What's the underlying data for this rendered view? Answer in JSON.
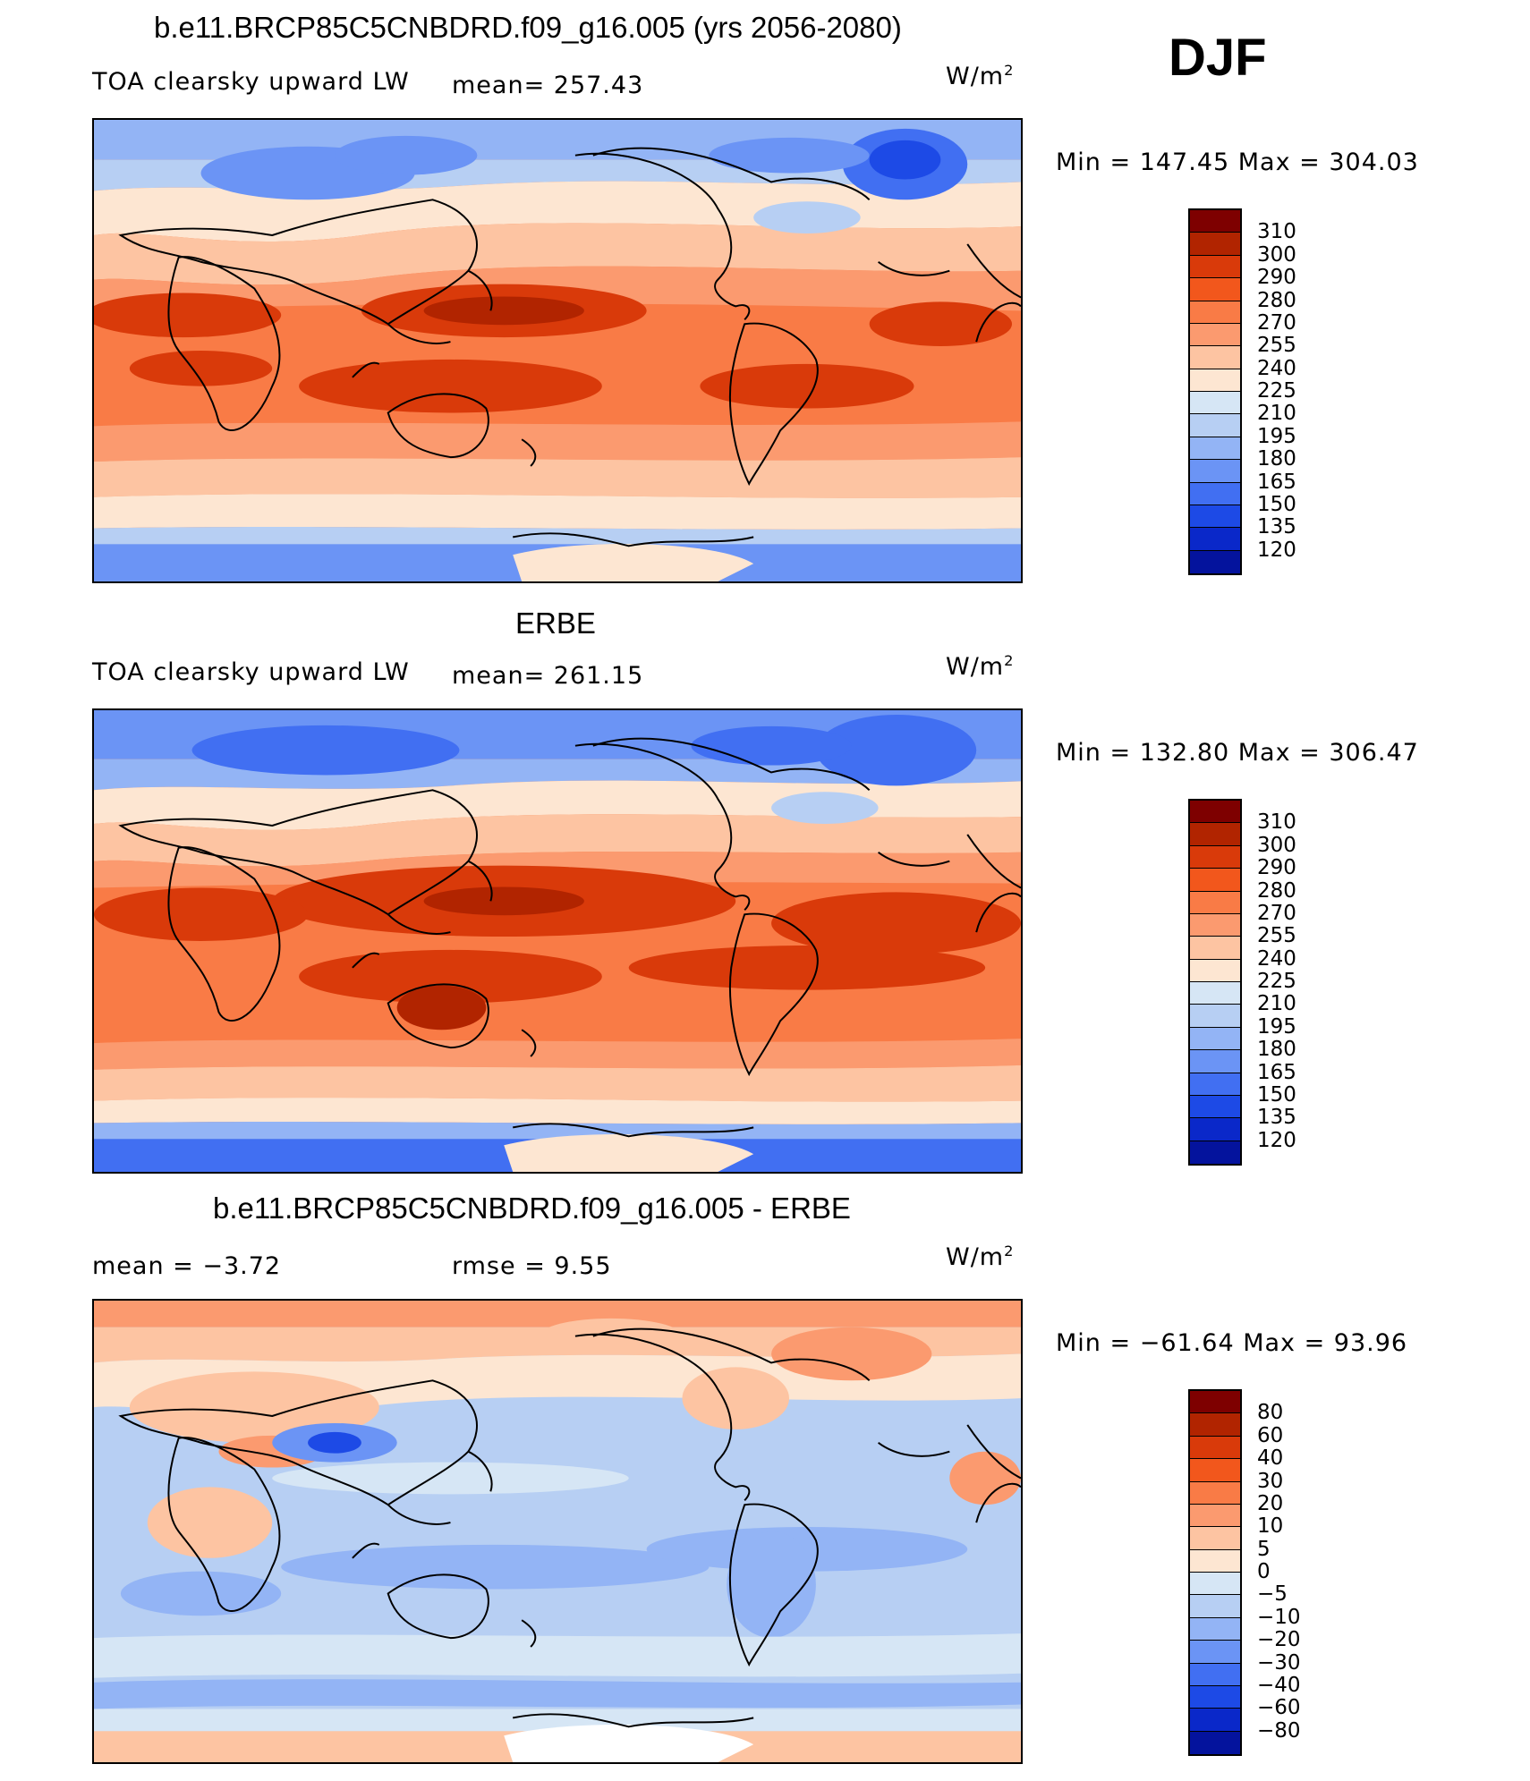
{
  "season": "DJF",
  "units_prefix": "W/m",
  "units_exp": "2",
  "palettes": {
    "abs": [
      "#7e0000",
      "#b12400",
      "#d93a0a",
      "#f2571c",
      "#f97b46",
      "#fb9a6f",
      "#fdc4a2",
      "#fde6d2",
      "#d6e6f5",
      "#b7cff3",
      "#93b4f5",
      "#6b94f5",
      "#416ff2",
      "#1d4ae6",
      "#0a28c9",
      "#04139d",
      "#000682"
    ],
    "diff": [
      "#7e0000",
      "#b12400",
      "#d93a0a",
      "#f2571c",
      "#f97b46",
      "#fb9a6f",
      "#fdc4a2",
      "#fde6d2",
      "#d6e6f5",
      "#b7cff3",
      "#93b4f5",
      "#6b94f5",
      "#416ff2",
      "#1d4ae6",
      "#0a28c9",
      "#04139d",
      "#000682"
    ]
  },
  "panels": [
    {
      "id": "model",
      "title": "b.e11.BRCP85C5CNBDRD.f09_g16.005 (yrs 2056-2080)",
      "variable": "TOA clearsky upward LW",
      "mean_text": "mean=  257.43",
      "rmse_text": "",
      "minmax_text": "Min  =  147.45  Max  =  304.03",
      "colorbar": {
        "palette": "abs",
        "labels": [
          "310",
          "300",
          "290",
          "280",
          "270",
          "255",
          "240",
          "225",
          "210",
          "195",
          "180",
          "165",
          "150",
          "135",
          "120"
        ]
      }
    },
    {
      "id": "obs",
      "title": "ERBE",
      "variable": "TOA clearsky upward LW",
      "mean_text": "mean=  261.15",
      "rmse_text": "",
      "minmax_text": "Min  =  132.80  Max  =  306.47",
      "colorbar": {
        "palette": "abs",
        "labels": [
          "310",
          "300",
          "290",
          "280",
          "270",
          "255",
          "240",
          "225",
          "210",
          "195",
          "180",
          "165",
          "150",
          "135",
          "120"
        ]
      }
    },
    {
      "id": "diff",
      "title": "b.e11.BRCP85C5CNBDRD.f09_g16.005 - ERBE",
      "variable": "",
      "mean_text": "mean  =    −3.72",
      "rmse_text": "rmse  =     9.55",
      "minmax_text": "Min  =  −61.64  Max  =    93.96",
      "colorbar": {
        "palette": "diff",
        "labels": [
          "80",
          "60",
          "40",
          "30",
          "20",
          "10",
          "5",
          "0",
          "−5",
          "−10",
          "−20",
          "−30",
          "−40",
          "−60",
          "−80"
        ]
      }
    }
  ]
}
